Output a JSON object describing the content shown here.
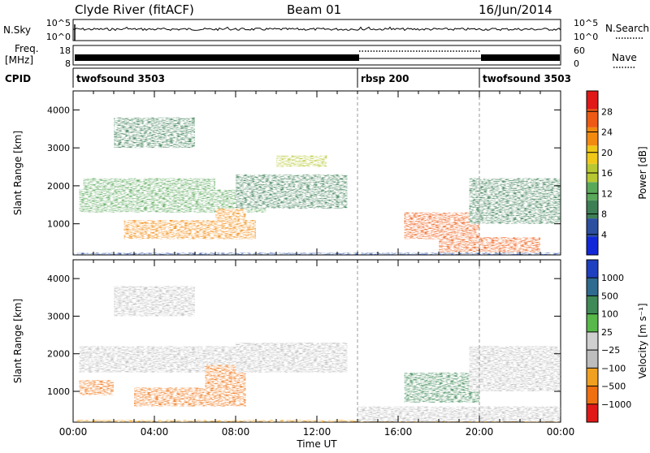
{
  "header": {
    "station": "Clyde River (fitACF)",
    "beam": "Beam 01",
    "date": "16/Jun/2014"
  },
  "top_panels": {
    "nsky_label": "N.Sky",
    "nsky_ticks": [
      "10^5",
      "10^0"
    ],
    "nsearch_ticks": [
      "10^5",
      "10^0"
    ],
    "nsearch_label": "N.Search",
    "freq_label_1": "Freq.",
    "freq_label_2": "[MHz]",
    "freq_ticks": [
      "18",
      "8"
    ],
    "nave_ticks": [
      "60",
      "0"
    ],
    "nave_label": "Nave",
    "cpid_label": "CPID",
    "cpid_segments": [
      {
        "name": "twofsound 3503",
        "start_h": 0,
        "end_h": 14
      },
      {
        "name": "rbsp 200",
        "start_h": 14,
        "end_h": 20
      },
      {
        "name": "twofsound 3503",
        "start_h": 20,
        "end_h": 24
      }
    ]
  },
  "colors": {
    "power_scale": [
      "#1228d8",
      "#2c4fa0",
      "#3d7f55",
      "#5aa85a",
      "#b8c832",
      "#f0c818",
      "#f28a10",
      "#ee5a14",
      "#e01818"
    ],
    "velocity_scale": [
      "#1e3fbf",
      "#2f6a8f",
      "#3f8a57",
      "#58b84a",
      "#cfcfcf",
      "#bdbdbd",
      "#f0a020",
      "#ee7010",
      "#e01818"
    ]
  },
  "chart_data": [
    {
      "type": "heatmap",
      "quantity": "Power",
      "xlabel": "Time UT",
      "ylabel": "Slant Range [km]",
      "xlim": [
        0,
        24
      ],
      "ylim": [
        180,
        4500
      ],
      "x_tick_labels": [
        "00:00",
        "04:00",
        "08:00",
        "12:00",
        "16:00",
        "20:00",
        "00:00"
      ],
      "y_ticks": [
        1000,
        2000,
        3000,
        4000
      ],
      "colorbar_label": "Power [dB]",
      "colorbar_ticks": [
        4,
        8,
        12,
        16,
        20,
        24,
        28
      ],
      "colorbar_range": [
        0,
        32
      ],
      "regions": [
        {
          "t0": 0,
          "t1": 24,
          "r0": 180,
          "r1": 240,
          "value": 6
        },
        {
          "t0": 0.3,
          "t1": 9.5,
          "r0": 1300,
          "r1": 1900,
          "value": 14
        },
        {
          "t0": 0.5,
          "t1": 7.0,
          "r0": 1700,
          "r1": 2200,
          "value": 12
        },
        {
          "t0": 2.5,
          "t1": 9.0,
          "r0": 600,
          "r1": 1100,
          "value": 22
        },
        {
          "t0": 7.0,
          "t1": 8.5,
          "r0": 600,
          "r1": 1400,
          "value": 24
        },
        {
          "t0": 8.0,
          "t1": 13.5,
          "r0": 1400,
          "r1": 2300,
          "value": 8
        },
        {
          "t0": 10.0,
          "t1": 12.5,
          "r0": 2500,
          "r1": 2800,
          "value": 16
        },
        {
          "t0": 16.3,
          "t1": 20.0,
          "r0": 600,
          "r1": 1300,
          "value": 26
        },
        {
          "t0": 18.0,
          "t1": 23.0,
          "r0": 250,
          "r1": 650,
          "value": 28
        },
        {
          "t0": 19.5,
          "t1": 24.0,
          "r0": 1000,
          "r1": 2200,
          "value": 8
        },
        {
          "t0": 2.0,
          "t1": 6.0,
          "r0": 3000,
          "r1": 3800,
          "value": 10
        }
      ]
    },
    {
      "type": "heatmap",
      "quantity": "Velocity",
      "xlabel": "Time UT",
      "ylabel": "Slant Range [km]",
      "xlim": [
        0,
        24
      ],
      "ylim": [
        180,
        4500
      ],
      "x_tick_labels": [
        "00:00",
        "04:00",
        "08:00",
        "12:00",
        "16:00",
        "20:00",
        "00:00"
      ],
      "y_ticks": [
        1000,
        2000,
        3000,
        4000
      ],
      "colorbar_label": "Velocity [m s⁻¹]",
      "colorbar_ticks": [
        "1000",
        "500",
        "100",
        "25",
        "−25",
        "−100",
        "−500",
        "−1000"
      ],
      "regions": [
        {
          "t0": 0,
          "t1": 24,
          "r0": 180,
          "r1": 240,
          "value": -50
        },
        {
          "t0": 0.3,
          "t1": 9.5,
          "r0": 1500,
          "r1": 2200,
          "value": 0
        },
        {
          "t0": 0.3,
          "t1": 2.0,
          "r0": 900,
          "r1": 1300,
          "value": -300
        },
        {
          "t0": 3.0,
          "t1": 8.5,
          "r0": 600,
          "r1": 1100,
          "value": -300
        },
        {
          "t0": 6.5,
          "t1": 8.5,
          "r0": 900,
          "r1": 1700,
          "value": -400
        },
        {
          "t0": 8.0,
          "t1": 13.5,
          "r0": 1500,
          "r1": 2300,
          "value": 0
        },
        {
          "t0": 16.3,
          "t1": 20.0,
          "r0": 700,
          "r1": 1500,
          "value": 200
        },
        {
          "t0": 14.0,
          "t1": 24.0,
          "r0": 200,
          "r1": 600,
          "value": 0
        },
        {
          "t0": 19.5,
          "t1": 24.0,
          "r0": 1000,
          "r1": 2200,
          "value": 0
        },
        {
          "t0": 2.0,
          "t1": 6.0,
          "r0": 3000,
          "r1": 3800,
          "value": 0
        }
      ]
    }
  ]
}
